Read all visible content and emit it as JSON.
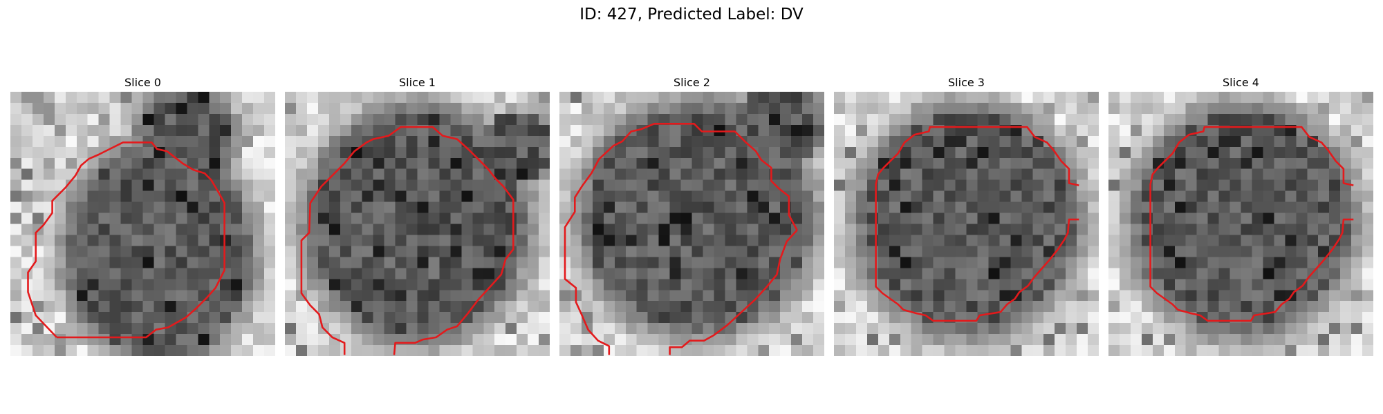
{
  "figure": {
    "title": "ID: 427, Predicted Label: DV"
  },
  "slices": [
    {
      "title": "Slice 0"
    },
    {
      "title": "Slice 1"
    },
    {
      "title": "Slice 2"
    },
    {
      "title": "Slice 3"
    },
    {
      "title": "Slice 4"
    }
  ],
  "colors": {
    "contour": "#e31a1c",
    "background": "#ffffff"
  }
}
